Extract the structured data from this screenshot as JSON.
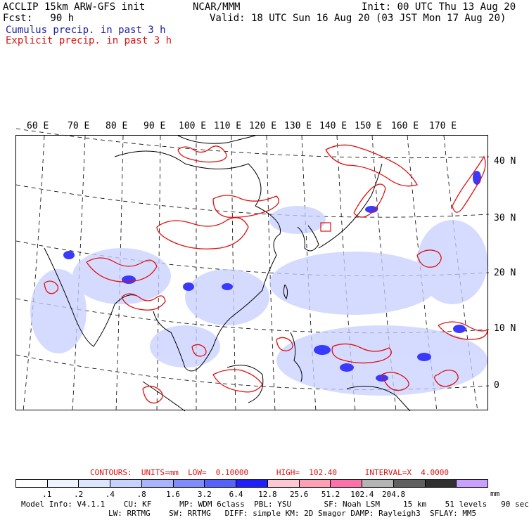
{
  "header": {
    "line1_left": "ACCLIP 15km ARW-GFS init",
    "line1_center": "NCAR/MMM",
    "line1_right": "Init: 00 UTC Thu 13 Aug 20",
    "line2_left": "Fcst:   90 h",
    "line2_right": "Valid: 18 UTC Sun 16 Aug 20 (03 JST Mon 17 Aug 20)",
    "line3": "Cumulus precip. in past 3 h",
    "line4": "Explicit precip. in past 3 h"
  },
  "colors": {
    "cumulus_text": "#1a1aa6",
    "explicit_text": "#e01010",
    "explicit_contour": "#e01010",
    "cumulus_fill_light": "#c8d0ff",
    "cumulus_fill_dark": "#3a3aff"
  },
  "map": {
    "lon_labels": [
      "60 E",
      "70 E",
      "80 E",
      "90 E",
      "100 E",
      "110 E",
      "120 E",
      "130 E",
      "140 E",
      "150 E",
      "160 E",
      "170 E"
    ],
    "lat_labels": [
      "40 N",
      "30 N",
      "20 N",
      "10 N",
      "0"
    ]
  },
  "contour_info": {
    "line": "CONTOURS:  UNITS=mm  LOW=  0.10000      HIGH=  102.40      INTERVAL=X  4.0000"
  },
  "legend": {
    "colors": [
      "#ffffff",
      "#f0f4ff",
      "#dde5ff",
      "#c8d2ff",
      "#a8b4ff",
      "#7f8cff",
      "#5662ff",
      "#1e1eff",
      "#ffc8d0",
      "#ff9fb4",
      "#ff70a8",
      "#b4b4b4",
      "#606060",
      "#303030",
      "#c9a0ff"
    ],
    "ticks": [
      ".1",
      ".2",
      ".4",
      ".8",
      "1.6",
      "3.2",
      "6.4",
      "12.8",
      "25.6",
      "51.2",
      "102.4",
      "204.8"
    ],
    "unit": "mm"
  },
  "footer": {
    "line1": "Model Info: V4.1.1    CU: KF      MP: WDM 6class  PBL: YSU       SF: Noah LSM     15 km    51 levels   90 sec",
    "line2": "LW: RRTMG    SW: RRTMG   DIFF: simple KM: 2D Smagor DAMP: Rayleigh3  SFLAY: MM5"
  }
}
